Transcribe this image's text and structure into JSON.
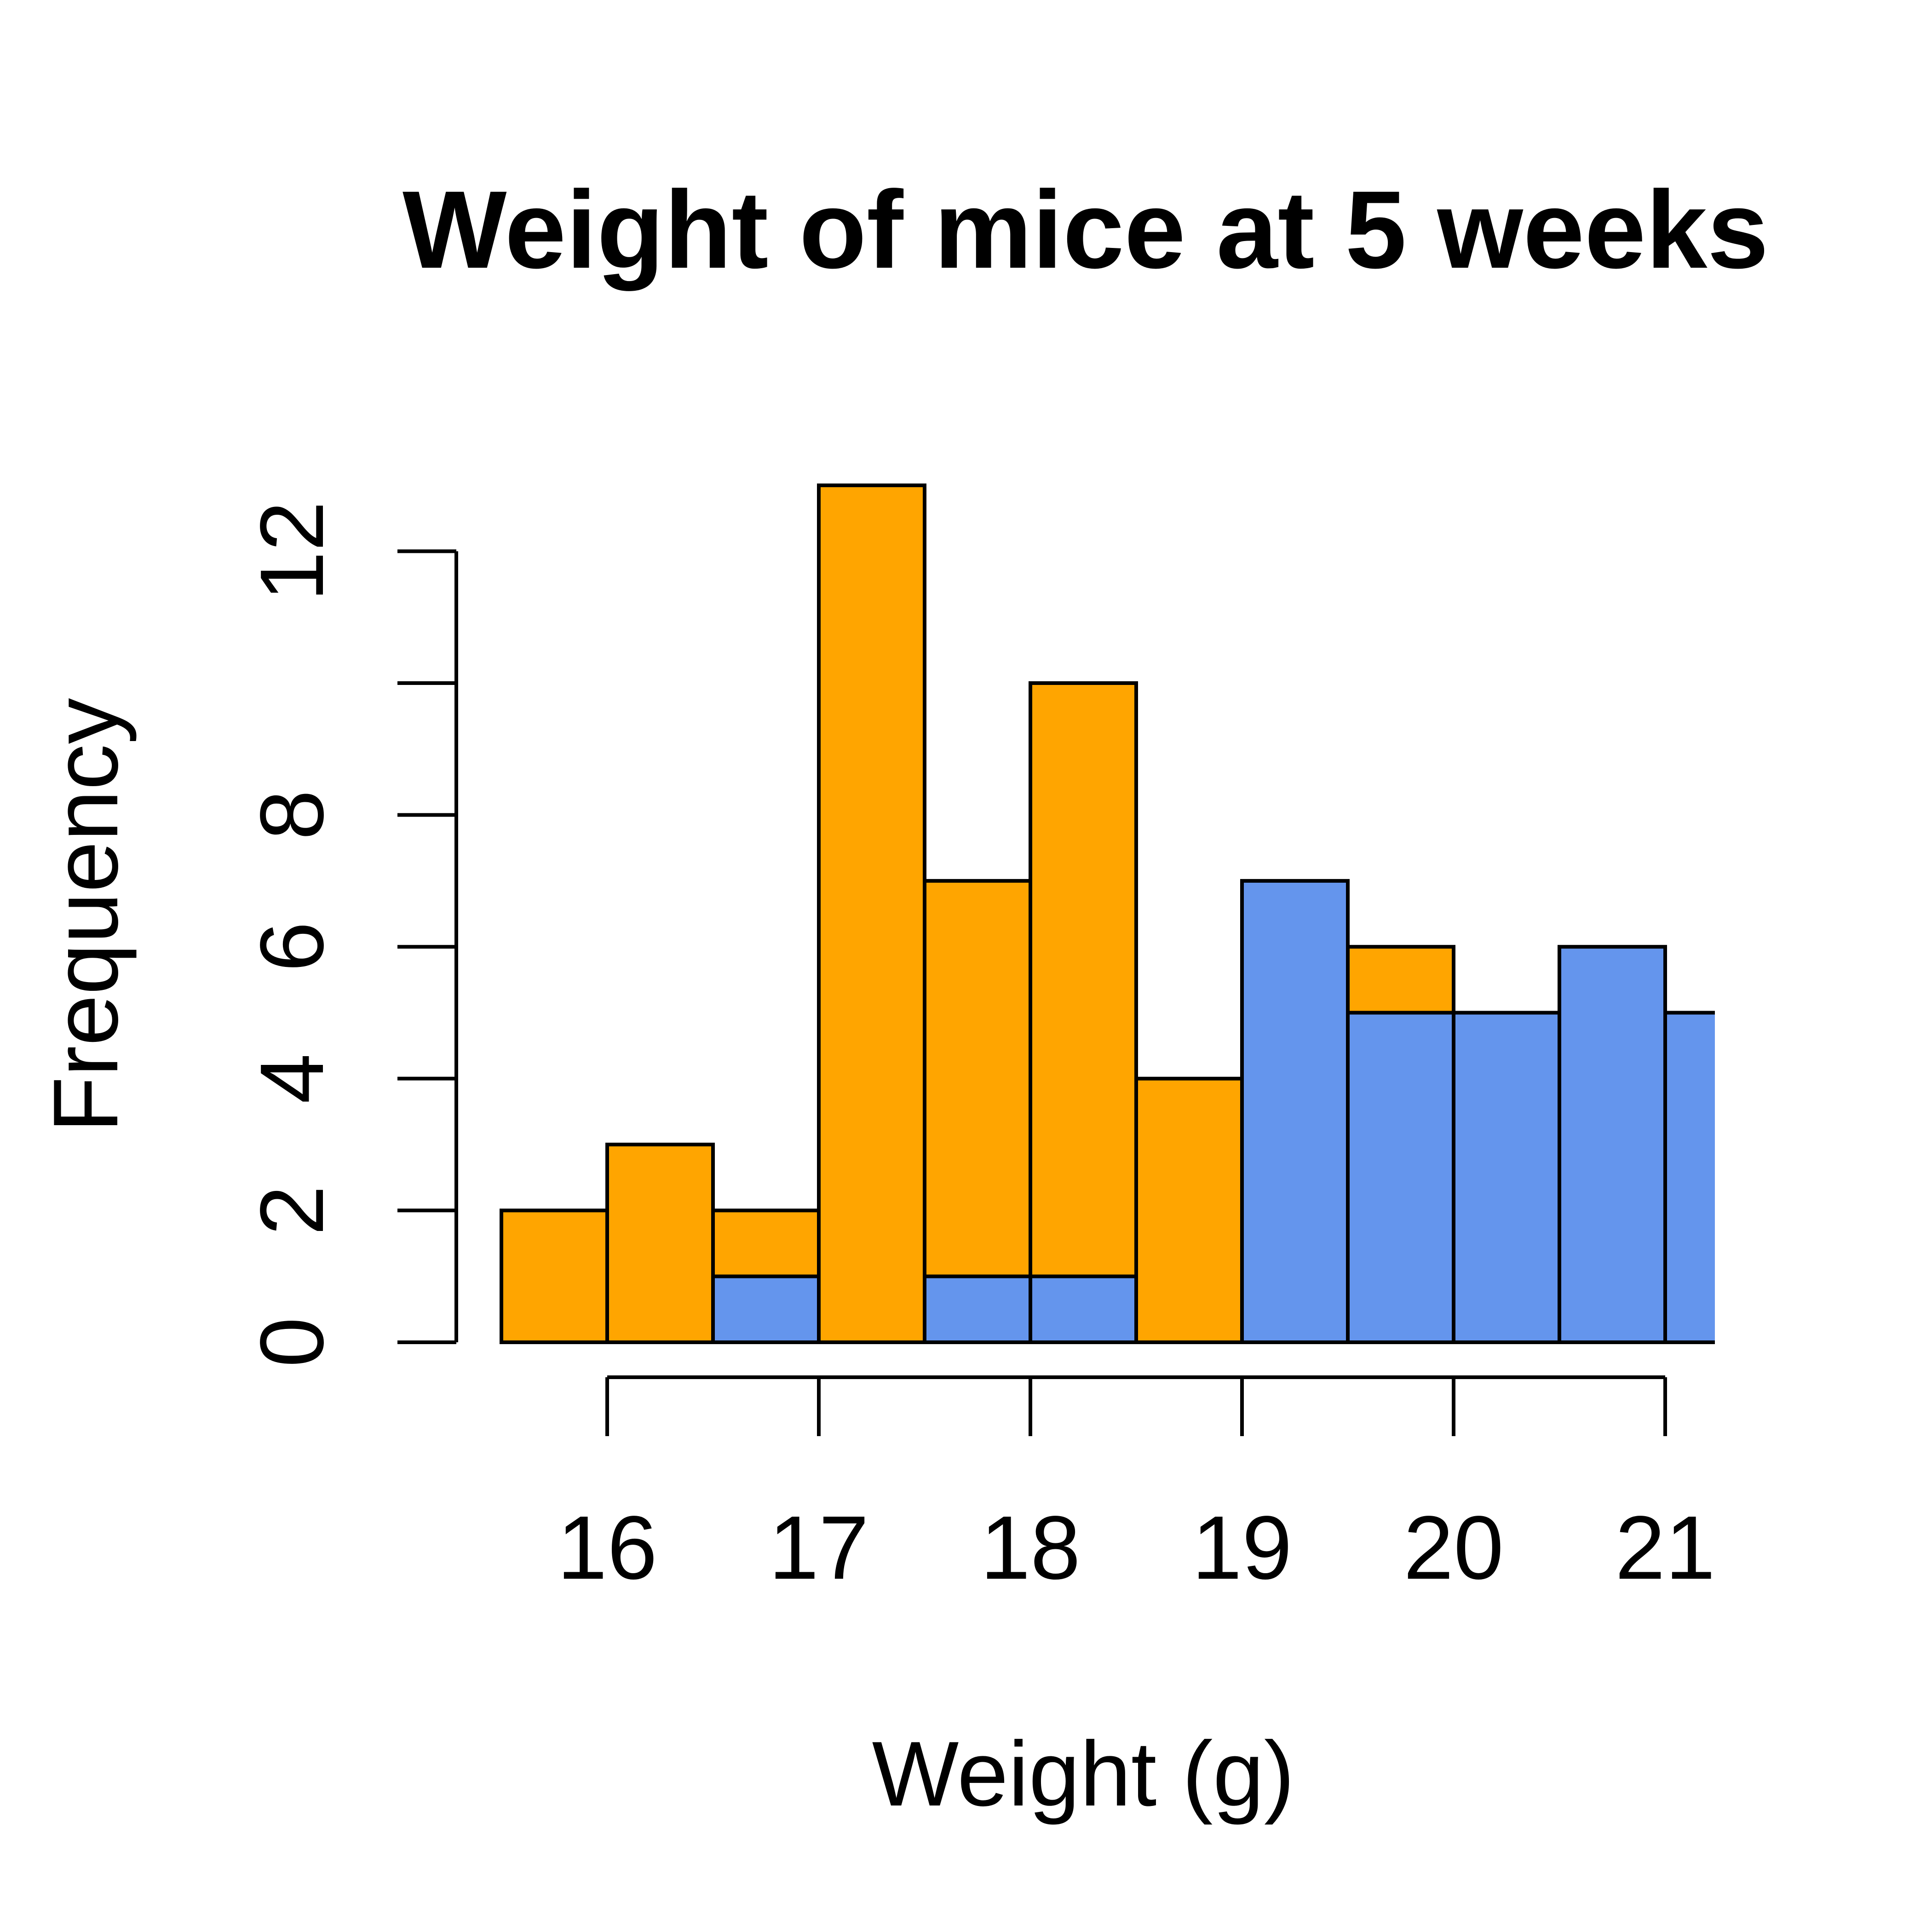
{
  "chart_data": {
    "type": "bar",
    "title": "Weight of mice at 5 weeks",
    "xlabel": "Weight (g)",
    "ylabel": "Frequency",
    "xlim": [
      14.75,
      21.25
    ],
    "ylim": [
      0,
      13
    ],
    "bin_width": 0.5,
    "x_ticks": [
      16,
      17,
      18,
      19,
      20,
      21
    ],
    "x_tick_labels": [
      "16",
      "17",
      "18",
      "19",
      "20",
      "21"
    ],
    "y_ticks": [
      0,
      2,
      4,
      6,
      8,
      10,
      12
    ],
    "y_tick_labels": [
      "0",
      "2",
      "4",
      "6",
      "8",
      "",
      "12"
    ],
    "grid": false,
    "legend": null,
    "stacking": "overlay",
    "series": [
      {
        "color": "#FFA500",
        "bins": [
          {
            "x0": 15.5,
            "x1": 16.0,
            "count": 2
          },
          {
            "x0": 16.0,
            "x1": 16.5,
            "count": 3
          },
          {
            "x0": 16.5,
            "x1": 17.0,
            "count": 2
          },
          {
            "x0": 17.0,
            "x1": 17.5,
            "count": 13
          },
          {
            "x0": 17.5,
            "x1": 18.0,
            "count": 7
          },
          {
            "x0": 18.0,
            "x1": 18.5,
            "count": 10
          },
          {
            "x0": 18.5,
            "x1": 19.0,
            "count": 4
          },
          {
            "x0": 19.5,
            "x1": 20.0,
            "count": 6
          }
        ]
      },
      {
        "color": "#6495ED",
        "bins": [
          {
            "x0": 16.5,
            "x1": 17.0,
            "count": 1
          },
          {
            "x0": 17.5,
            "x1": 18.0,
            "count": 1
          },
          {
            "x0": 18.0,
            "x1": 18.5,
            "count": 1
          },
          {
            "x0": 19.0,
            "x1": 19.5,
            "count": 7
          },
          {
            "x0": 19.5,
            "x1": 20.0,
            "count": 5
          },
          {
            "x0": 20.0,
            "x1": 20.5,
            "count": 5
          },
          {
            "x0": 20.5,
            "x1": 21.0,
            "count": 6
          },
          {
            "x0": 21.0,
            "x1": 21.5,
            "count": 5
          }
        ]
      }
    ]
  }
}
